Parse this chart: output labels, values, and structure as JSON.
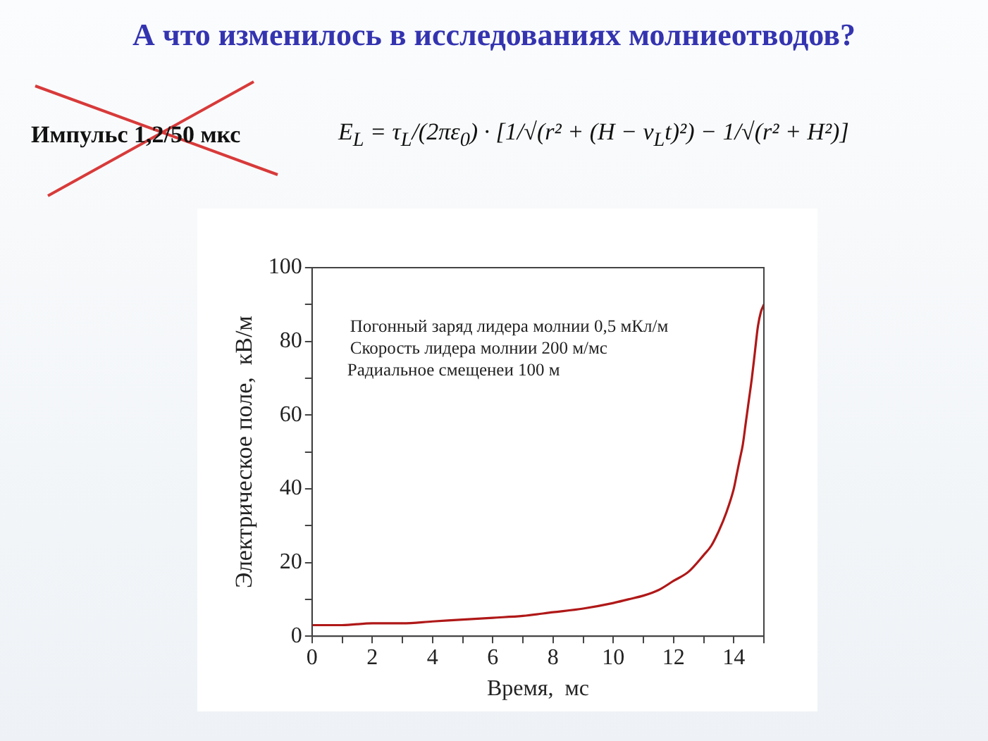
{
  "chart_data": {
    "type": "line",
    "title": "А что изменилось в исследованиях молниеотводов?",
    "xlabel": "Время,  мс",
    "ylabel": "Электрическое поле,  кВ/м",
    "annotations": [
      "Импульс 1,2/50 мкс",
      "E$_{L}$ = τ$_{L}$/(2πε$_{0}$) · [1/√(r² + (H − v$_{L}$t)²) − 1/√(r² + H²)]",
      "Погонный заряд лидера молнии 0,5 мКл/м",
      "Скорость лидера молнии 200 м/мс",
      "Радиальное смещенеи 100 м"
    ],
    "series": [
      {
        "color": "#b01818",
        "x": [
          0,
          1,
          2,
          3,
          4,
          5,
          6,
          7,
          8,
          9,
          10,
          10.5,
          11,
          11.5,
          12,
          12.5,
          13,
          13.25,
          13.5,
          13.75,
          14,
          14.1,
          14.2,
          14.3,
          14.4,
          14.5,
          14.6,
          14.7,
          14.8,
          14.9,
          15
        ],
        "values": [
          3,
          3,
          3.5,
          3.5,
          4,
          4.5,
          5,
          5.5,
          6.5,
          7.5,
          9,
          10,
          11,
          12.5,
          15,
          17.5,
          22,
          24.5,
          28.5,
          33.5,
          40,
          44,
          48,
          52,
          58,
          64,
          70,
          77,
          84,
          88,
          90
        ]
      }
    ],
    "xlim": [
      0,
      15
    ],
    "xticks": [
      0,
      {
        "value": 1,
        "label": null
      },
      2,
      {
        "value": 3,
        "label": null
      },
      4,
      {
        "value": 5,
        "label": null
      },
      6,
      {
        "value": 7,
        "label": null
      },
      8,
      {
        "value": 9,
        "label": null
      },
      10,
      {
        "value": 11,
        "label": null
      },
      12,
      {
        "value": 13,
        "label": null
      },
      14,
      {
        "value": 15,
        "label": null
      }
    ],
    "ylim": [
      0,
      100
    ],
    "yticks": [
      0,
      {
        "value": 10,
        "label": null
      },
      20,
      {
        "value": 30,
        "label": null
      },
      40,
      {
        "value": 50,
        "label": null
      },
      60,
      {
        "value": 70,
        "label": null
      },
      80,
      {
        "value": 90,
        "label": null
      },
      100
    ],
    "grid": false,
    "legend": false,
    "marker": "none",
    "line_style": "solid"
  }
}
